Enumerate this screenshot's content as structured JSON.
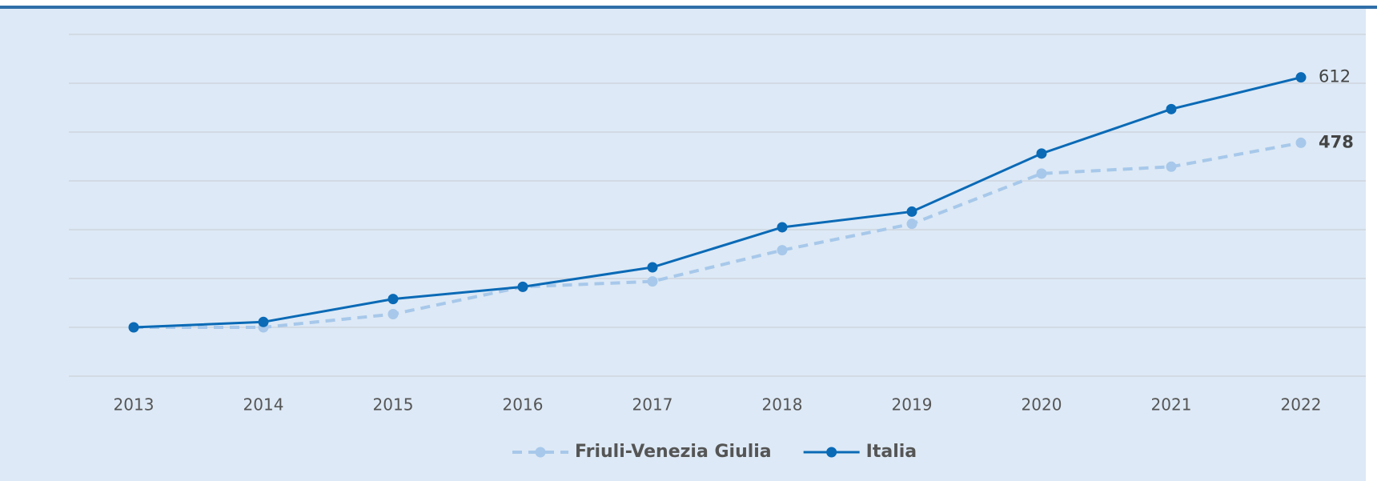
{
  "chart_data": {
    "type": "line",
    "categories": [
      "2013",
      "2014",
      "2015",
      "2016",
      "2017",
      "2018",
      "2019",
      "2020",
      "2021",
      "2022"
    ],
    "series": [
      {
        "name": "Friuli-Venezia Giulia",
        "color": "#a7c8ea",
        "dashed": true,
        "values": [
          100,
          100,
          127,
          183,
          194,
          258,
          312,
          415,
          429,
          478
        ]
      },
      {
        "name": "Italia",
        "color": "#0a6ab6",
        "dashed": false,
        "values": [
          100,
          111,
          158,
          183,
          223,
          305,
          337,
          456,
          547,
          612
        ]
      }
    ],
    "ylim": [
      0,
      700
    ],
    "yticks": [
      0,
      100,
      200,
      300,
      400,
      500,
      600,
      700
    ],
    "grid": true
  }
}
